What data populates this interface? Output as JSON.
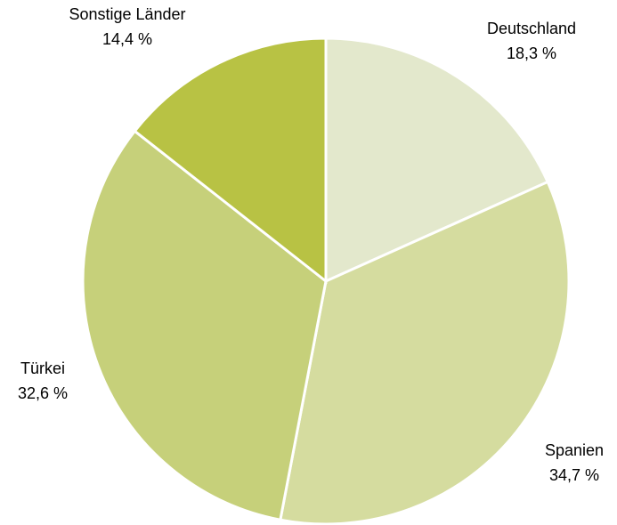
{
  "chart_data": {
    "type": "pie",
    "categories": [
      "Deutschland",
      "Spanien",
      "Türkei",
      "Sonstige Länder"
    ],
    "values": [
      18.3,
      34.7,
      32.6,
      14.4
    ],
    "value_labels": [
      "18,3 %",
      "34,7 %",
      "32,6 %",
      "14,4 %"
    ],
    "colors": [
      "#e3e8cc",
      "#d5dc9f",
      "#c6d07a",
      "#b8c244"
    ]
  }
}
